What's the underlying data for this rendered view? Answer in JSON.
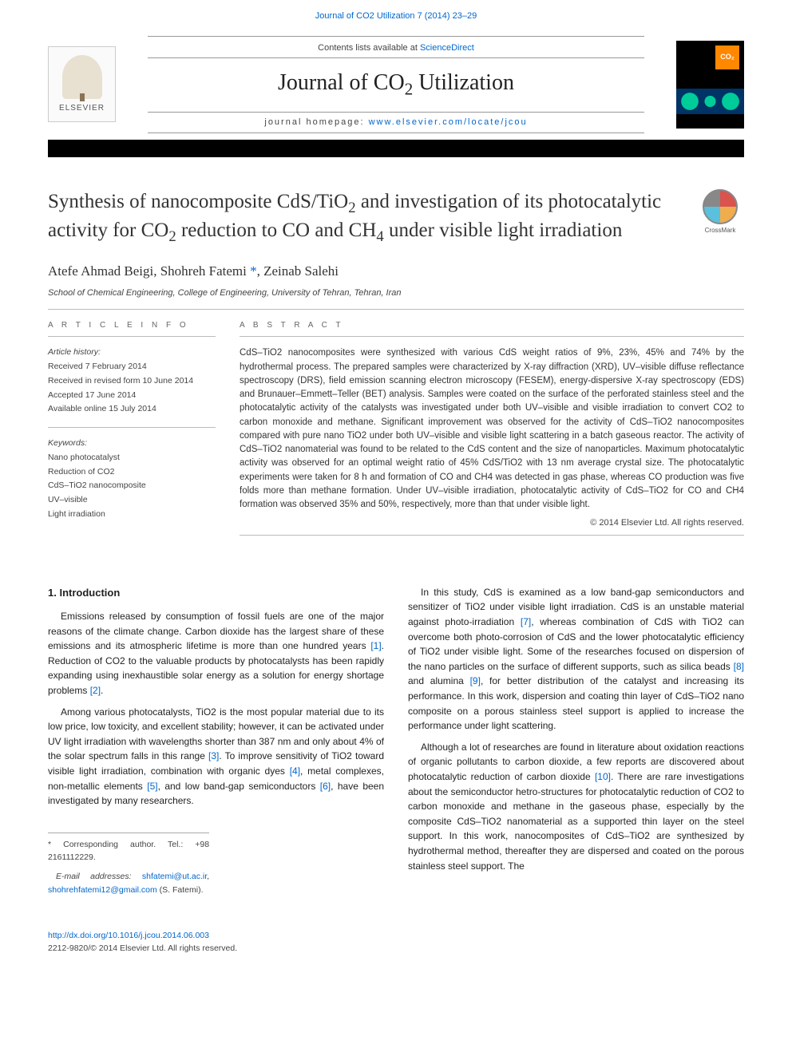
{
  "top_link": {
    "text": "Journal of CO2 Utilization 7 (2014) 23–29",
    "sub": "2"
  },
  "contents_line": {
    "prefix": "Contents lists available at ",
    "link": "ScienceDirect"
  },
  "journal_name": {
    "text": "Journal of CO",
    "sub": "2",
    "suffix": " Utilization"
  },
  "homepage": {
    "prefix": "journal homepage: ",
    "link": "www.elsevier.com/locate/jcou"
  },
  "elsevier_label": "ELSEVIER",
  "cover_badge": "CO₂",
  "crossmark_label": "CrossMark",
  "title": {
    "line1_a": "Synthesis of nanocomposite CdS/TiO",
    "line1_sub": "2",
    "line1_b": " and investigation of its photocatalytic activity for CO",
    "line1_sub2": "2",
    "line1_c": " reduction to CO and CH",
    "line1_sub3": "4",
    "line1_d": " under visible light irradiation"
  },
  "authors": {
    "a1": "Atefe Ahmad Beigi",
    "a2": "Shohreh Fatemi",
    "corr_mark": "*",
    "a3": "Zeinab Salehi"
  },
  "affiliation": "School of Chemical Engineering, College of Engineering, University of Tehran, Tehran, Iran",
  "article_info": {
    "heading": "A R T I C L E   I N F O",
    "history_label": "Article history:",
    "h1": "Received 7 February 2014",
    "h2": "Received in revised form 10 June 2014",
    "h3": "Accepted 17 June 2014",
    "h4": "Available online 15 July 2014",
    "keywords_label": "Keywords:",
    "k1": "Nano photocatalyst",
    "k2": "Reduction of CO2",
    "k3": "CdS–TiO2 nanocomposite",
    "k4": "UV–visible",
    "k5": "Light irradiation"
  },
  "abstract": {
    "heading": "A B S T R A C T",
    "text": "CdS–TiO2 nanocomposites were synthesized with various CdS weight ratios of 9%, 23%, 45% and 74% by the hydrothermal process. The prepared samples were characterized by X-ray diffraction (XRD), UV–visible diffuse reflectance spectroscopy (DRS), field emission scanning electron microscopy (FESEM), energy-dispersive X-ray spectroscopy (EDS) and Brunauer–Emmett–Teller (BET) analysis. Samples were coated on the surface of the perforated stainless steel and the photocatalytic activity of the catalysts was investigated under both UV–visible and visible irradiation to convert CO2 to carbon monoxide and methane. Significant improvement was observed for the activity of CdS–TiO2 nanocomposites compared with pure nano TiO2 under both UV–visible and visible light scattering in a batch gaseous reactor. The activity of CdS–TiO2 nanomaterial was found to be related to the CdS content and the size of nanoparticles. Maximum photocatalytic activity was observed for an optimal weight ratio of 45% CdS/TiO2 with 13 nm average crystal size. The photocatalytic experiments were taken for 8 h and formation of CO and CH4 was detected in gas phase, whereas CO production was five folds more than methane formation. Under UV–visible irradiation, photocatalytic activity of CdS–TiO2 for CO and CH4 formation was observed 35% and 50%, respectively, more than that under visible light.",
    "copyright": "© 2014 Elsevier Ltd. All rights reserved."
  },
  "intro": {
    "heading": "1. Introduction",
    "p1_a": "Emissions released by consumption of fossil fuels are one of the major reasons of the climate change. Carbon dioxide has the largest share of these emissions and its atmospheric lifetime is more than one hundred years ",
    "p1_r1": "[1]",
    "p1_b": ". Reduction of CO2 to the valuable products by photocatalysts has been rapidly expanding using inexhaustible solar energy as a solution for energy shortage problems ",
    "p1_r2": "[2]",
    "p1_c": ".",
    "p2_a": "Among various photocatalysts, TiO2 is the most popular material due to its low price, low toxicity, and excellent stability; however, it can be activated under UV light irradiation with wavelengths shorter than 387 nm and only about 4% of the solar spectrum falls in this range ",
    "p2_r1": "[3]",
    "p2_b": ". To improve sensitivity of TiO2 toward visible light irradiation, combination with organic dyes ",
    "p2_r2": "[4]",
    "p2_c": ", metal complexes, non-metallic elements ",
    "p2_r3": "[5]",
    "p2_d": ", and low band-gap semiconductors ",
    "p2_r4": "[6]",
    "p2_e": ", have been investigated by many researchers."
  },
  "col2": {
    "p1_a": "In this study, CdS is examined as a low band-gap semiconductors and sensitizer of TiO2 under visible light irradiation. CdS is an unstable material against photo-irradiation ",
    "p1_r1": "[7]",
    "p1_b": ", whereas combination of CdS with TiO2 can overcome both photo-corrosion of CdS and the lower photocatalytic efficiency of TiO2 under visible light. Some of the researches focused on dispersion of the nano particles on the surface of different supports, such as silica beads ",
    "p1_r2": "[8]",
    "p1_c": " and alumina ",
    "p1_r3": "[9]",
    "p1_d": ", for better distribution of the catalyst and increasing its performance. In this work, dispersion and coating thin layer of CdS–TiO2 nano composite on a porous stainless steel support is applied to increase the performance under light scattering.",
    "p2_a": "Although a lot of researches are found in literature about oxidation reactions of organic pollutants to carbon dioxide, a few reports are discovered about photocatalytic reduction of carbon dioxide ",
    "p2_r1": "[10]",
    "p2_b": ". There are rare investigations about the semiconductor hetro-structures for photocatalytic reduction of CO2 to carbon monoxide and methane in the gaseous phase, especially by the composite CdS–TiO2 nanomaterial as a supported thin layer on the steel support. In this work, nanocomposites of CdS–TiO2 are synthesized by hydrothermal method, thereafter they are dispersed and coated on the porous stainless steel support. The"
  },
  "footnotes": {
    "corr": "* Corresponding author. Tel.: +98 2161112229.",
    "email_label": "E-mail addresses: ",
    "email1": "shfatemi@ut.ac.ir",
    "email_sep": ", ",
    "email2": "shohrehfatemi12@gmail.com",
    "email_suffix": " (S. Fatemi)."
  },
  "doi": {
    "link": "http://dx.doi.org/10.1016/j.jcou.2014.06.003",
    "issn": "2212-9820/© 2014 Elsevier Ltd. All rights reserved."
  },
  "colors": {
    "link": "#0066cc",
    "text": "#333333",
    "rule": "#999999"
  }
}
